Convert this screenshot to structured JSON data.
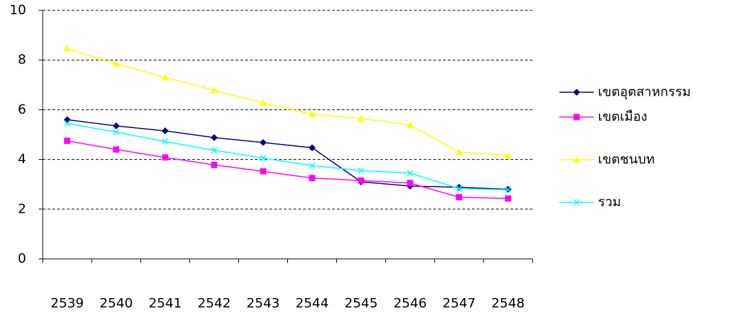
{
  "chart_data": {
    "type": "line",
    "categories": [
      "2539",
      "2540",
      "2541",
      "2542",
      "2543",
      "2544",
      "2545",
      "2546",
      "2547",
      "2548"
    ],
    "series": [
      {
        "name": "เขตอุตสาหกรรม",
        "color": "#000080",
        "marker": "diamond",
        "values": [
          5.6,
          5.35,
          5.15,
          4.88,
          4.68,
          4.47,
          3.1,
          2.93,
          2.88,
          2.8
        ]
      },
      {
        "name": "เขตเมือง",
        "color": "#ff00ff",
        "marker": "square",
        "values": [
          4.75,
          4.4,
          4.08,
          3.78,
          3.52,
          3.25,
          3.15,
          3.05,
          2.48,
          2.43
        ]
      },
      {
        "name": "เขตชนบท",
        "color": "#ffff00",
        "marker": "triangle",
        "values": [
          8.45,
          7.85,
          7.3,
          6.78,
          6.27,
          5.82,
          5.65,
          5.38,
          4.3,
          4.15
        ]
      },
      {
        "name": "รวม",
        "color": "#00ffff",
        "marker": "x",
        "values": [
          5.45,
          5.1,
          4.72,
          4.37,
          4.05,
          3.75,
          3.55,
          3.45,
          2.83,
          2.78
        ]
      }
    ],
    "ylim": [
      0,
      10
    ],
    "yticks": [
      0,
      2,
      4,
      6,
      8,
      10
    ],
    "grid": true,
    "legend": "right"
  }
}
